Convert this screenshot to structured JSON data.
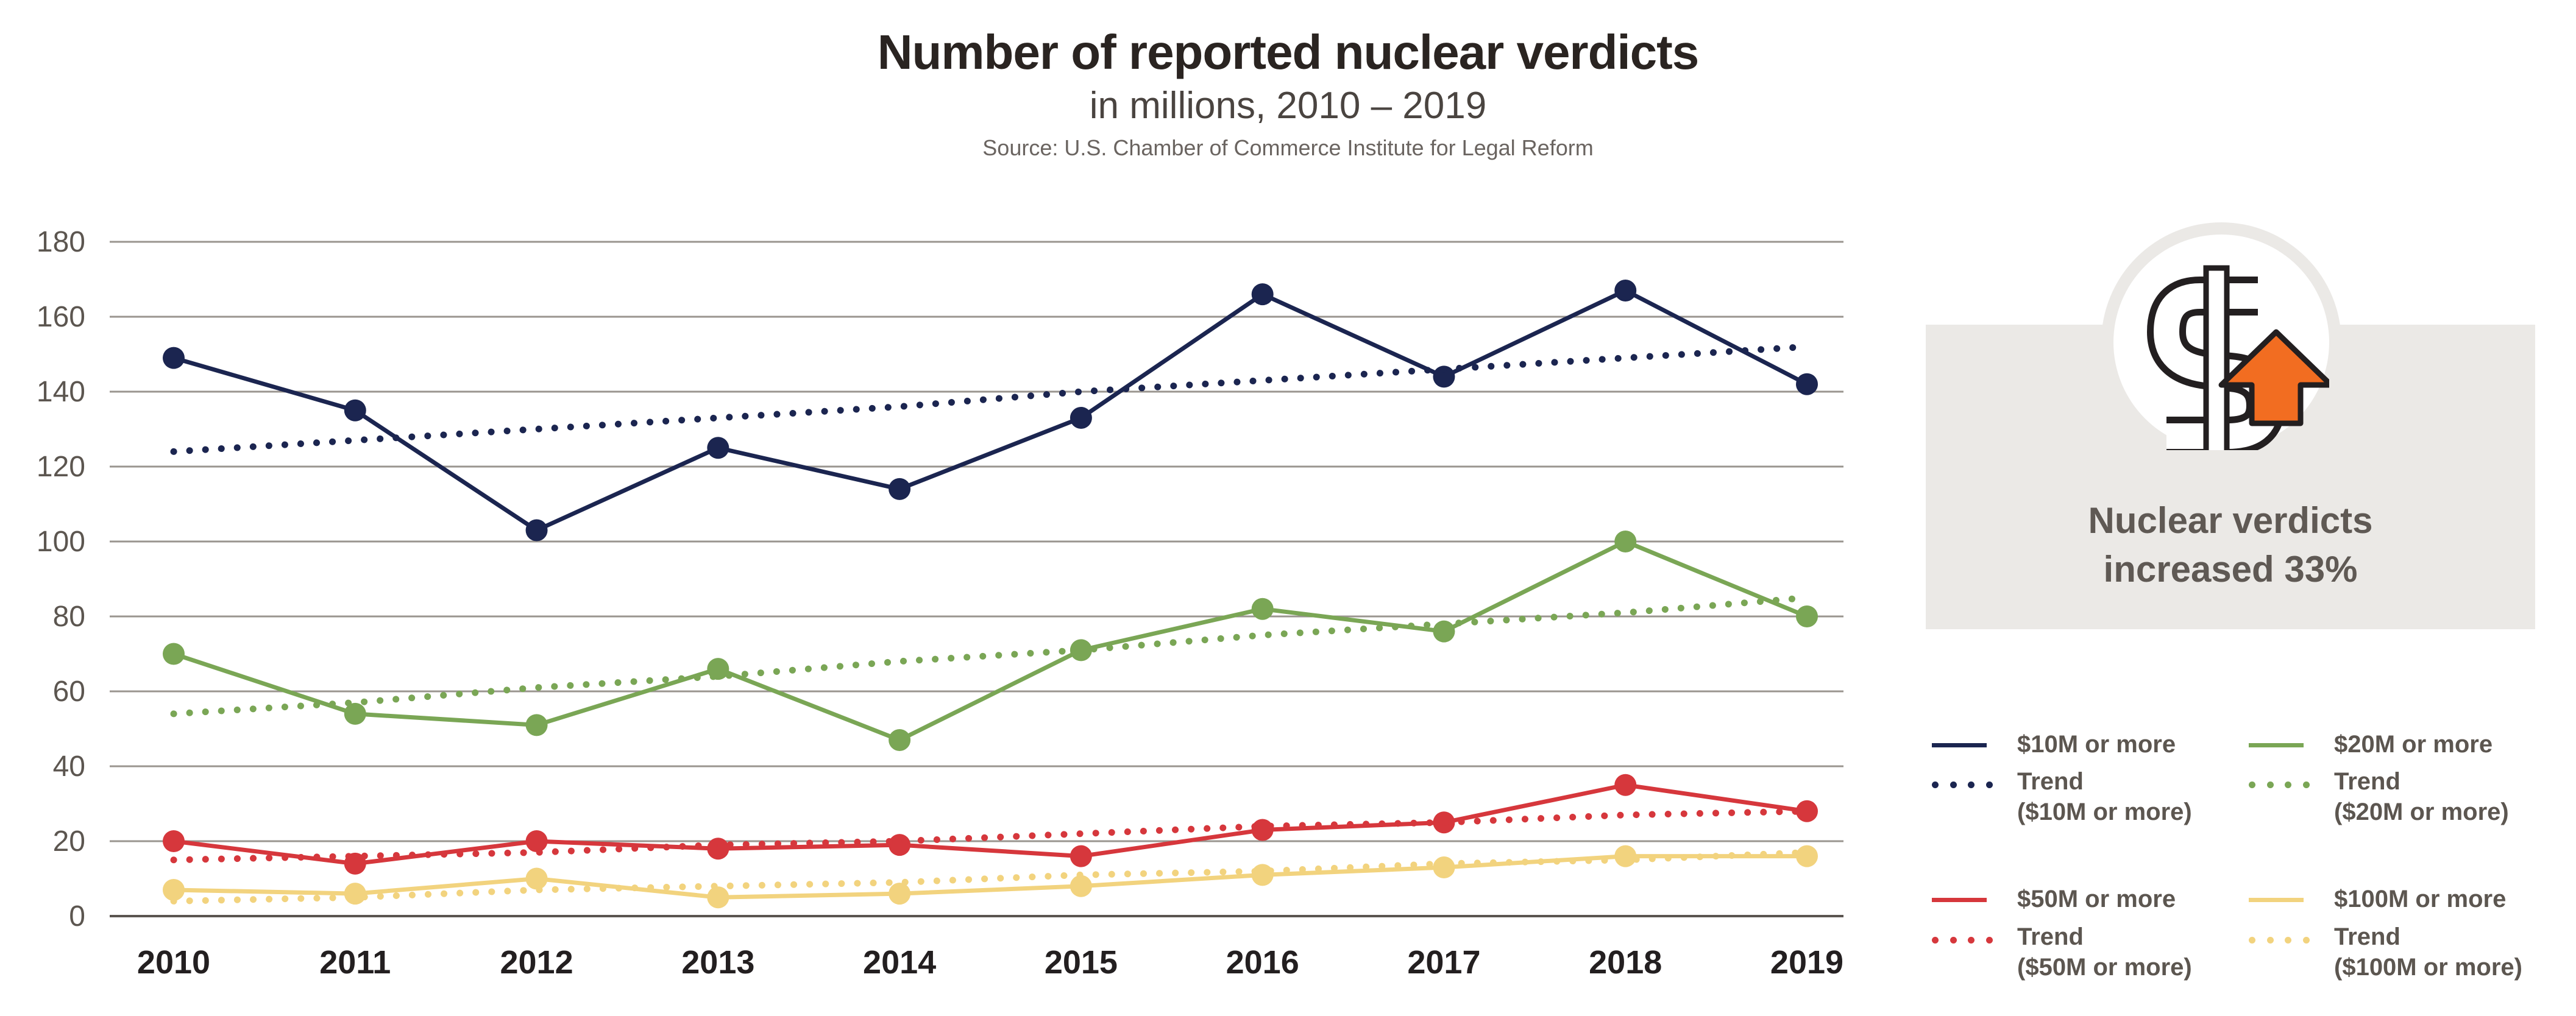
{
  "title": "Number of reported nuclear verdicts",
  "subtitle": "in millions, 2010 – 2019",
  "source": "Source: U.S. Chamber of Commerce Institute for Legal Reform",
  "callout": {
    "line1": "Nuclear verdicts",
    "line2": "increased 33%",
    "icon": "dollar-up-arrow-icon"
  },
  "legend": {
    "s10": "$10M or more",
    "t10a": "Trend",
    "t10b": "($10M or more)",
    "s20": "$20M or more",
    "t20a": "Trend",
    "t20b": "($20M or more)",
    "s50": "$50M or more",
    "t50a": "Trend",
    "t50b": "($50M or more)",
    "s100": "$100M or more",
    "t100a": "Trend",
    "t100b": "($100M or more)"
  },
  "chart_data": {
    "type": "line",
    "x": [
      "2010",
      "2011",
      "2012",
      "2013",
      "2014",
      "2015",
      "2016",
      "2017",
      "2018",
      "2019"
    ],
    "ylim": [
      0,
      180
    ],
    "yticks": [
      0,
      20,
      40,
      60,
      80,
      100,
      120,
      140,
      160,
      180
    ],
    "grid": true,
    "series": [
      {
        "name": "$10M or more",
        "color": "#1b2550",
        "style": "solid",
        "values": [
          149,
          135,
          103,
          125,
          114,
          133,
          166,
          144,
          167,
          142
        ]
      },
      {
        "name": "Trend ($10M or more)",
        "color": "#1b2550",
        "style": "dotted",
        "values": [
          124,
          127,
          130,
          133,
          136,
          140,
          143,
          146,
          149,
          152
        ]
      },
      {
        "name": "$20M or more",
        "color": "#7aa655",
        "style": "solid",
        "values": [
          70,
          54,
          51,
          66,
          47,
          71,
          82,
          76,
          100,
          80
        ]
      },
      {
        "name": "Trend ($20M or more)",
        "color": "#7aa655",
        "style": "dotted",
        "values": [
          54,
          57,
          61,
          64,
          68,
          71,
          75,
          78,
          81,
          85
        ]
      },
      {
        "name": "$50M or more",
        "color": "#d6373c",
        "style": "solid",
        "values": [
          20,
          14,
          20,
          18,
          19,
          16,
          23,
          25,
          35,
          28
        ]
      },
      {
        "name": "Trend ($50M or more)",
        "color": "#d6373c",
        "style": "dotted",
        "values": [
          15,
          16,
          17,
          19,
          20,
          22,
          24,
          25,
          27,
          28
        ]
      },
      {
        "name": "$100M or more",
        "color": "#f2d37e",
        "style": "solid",
        "values": [
          7,
          6,
          10,
          5,
          6,
          8,
          11,
          13,
          16,
          16
        ]
      },
      {
        "name": "Trend ($100M or more)",
        "color": "#f2d37e",
        "style": "dotted",
        "values": [
          4,
          5,
          7,
          8,
          9,
          11,
          12,
          14,
          15,
          17
        ]
      }
    ]
  }
}
